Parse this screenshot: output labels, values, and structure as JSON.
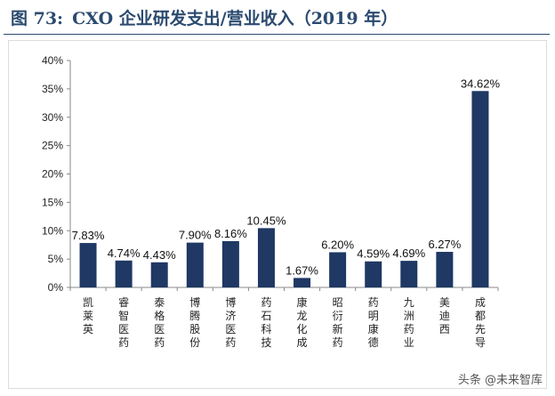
{
  "header": {
    "figure_label": "图 73:",
    "figure_title": "CXO 企业研发支出/营业收入（2019 年）"
  },
  "chart_data": {
    "type": "bar",
    "categories": [
      "凯莱英",
      "睿智医药",
      "泰格医药",
      "博腾股份",
      "博济医药",
      "药石科技",
      "康龙化成",
      "昭衍新药",
      "药明康德",
      "九洲药业",
      "美迪西",
      "成都先导"
    ],
    "values": [
      7.83,
      4.74,
      4.43,
      7.9,
      8.16,
      10.45,
      1.67,
      6.2,
      4.59,
      4.69,
      6.27,
      34.62
    ],
    "data_labels": [
      "7.83%",
      "4.74%",
      "4.43%",
      "7.90%",
      "8.16%",
      "10.45%",
      "1.67%",
      "6.20%",
      "4.59%",
      "4.69%",
      "6.27%",
      "34.62%"
    ],
    "y_ticks": [
      "0%",
      "5%",
      "10%",
      "15%",
      "20%",
      "25%",
      "30%",
      "35%",
      "40%"
    ],
    "ylim": [
      0,
      40
    ],
    "unit": "%",
    "grid": false,
    "bar_color": "#1f3864"
  },
  "watermark": {
    "text": "头条 @未来智库"
  }
}
